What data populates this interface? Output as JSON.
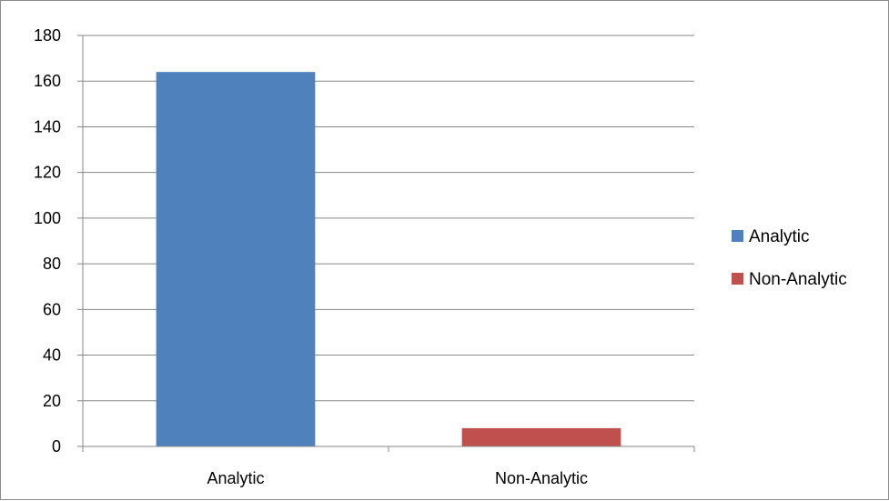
{
  "chart_data": {
    "type": "bar",
    "categories": [
      "Analytic",
      "Non-Analytic"
    ],
    "series": [
      {
        "name": "Analytic",
        "values": [
          164,
          null
        ],
        "color": "#4F81BD"
      },
      {
        "name": "Non-Analytic",
        "values": [
          null,
          8
        ],
        "color": "#C0504D"
      }
    ],
    "title": "",
    "xlabel": "",
    "ylabel": "",
    "ylim": [
      0,
      180
    ],
    "yticks": [
      "0",
      "20",
      "40",
      "60",
      "80",
      "100",
      "120",
      "140",
      "160",
      "180"
    ],
    "grid": true,
    "legend": {
      "position": "right",
      "entries": [
        "Analytic",
        "Non-Analytic"
      ]
    }
  }
}
